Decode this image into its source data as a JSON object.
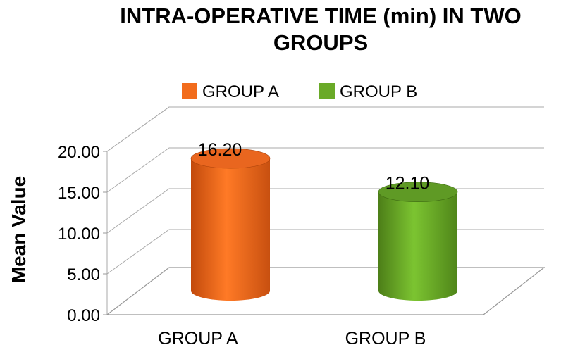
{
  "chart_data": {
    "type": "bar",
    "style": "3d-cylinder",
    "title_lines": [
      "INTRA-OPERATIVE  TIME (min) IN TWO",
      "GROUPS"
    ],
    "categories": [
      "GROUP A",
      "GROUP B"
    ],
    "series": [
      {
        "name": "GROUP A",
        "color": "#f26c1c",
        "values": [
          16.2,
          null
        ]
      },
      {
        "name": "GROUP B",
        "color": "#6aaa28",
        "values": [
          null,
          12.1
        ]
      }
    ],
    "data_labels": [
      "16.20",
      "12.10"
    ],
    "xlabel": "",
    "ylabel": "Mean Value",
    "ylim": [
      0,
      20
    ],
    "yticks": [
      "0.00",
      "5.00",
      "10.00",
      "15.00",
      "20.00"
    ],
    "grid": true,
    "legend_position": "top"
  }
}
